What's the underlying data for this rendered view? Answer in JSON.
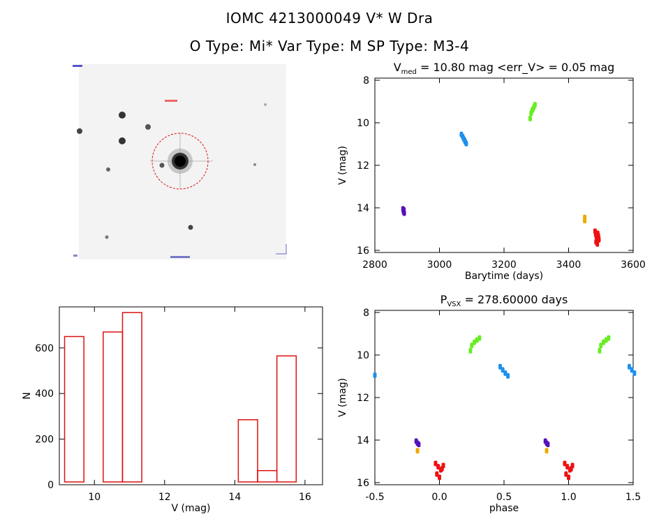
{
  "header": {
    "line1": "IOMC 4213000049    V* W Dra",
    "line2": "O Type: Mi*  Var Type: M   SP Type: M3-4"
  },
  "colors": {
    "histogram": "#dd1111",
    "finder_circle": "#dd1111",
    "season1": "#5511bb",
    "season2": "#1e90ee",
    "season3": "#66ee22",
    "season4": "#eeaa00",
    "season5": "#ee1111"
  },
  "chart_data": [
    {
      "id": "finder",
      "type": "image",
      "circle": "dashed red circle around target star"
    },
    {
      "id": "lightcurve",
      "type": "scatter",
      "title_main": "V",
      "title_sub": "med",
      "title_rest": " = 10.80 mag <err_V> = 0.05 mag",
      "xlabel": "Barytime (days)",
      "ylabel": "V (mag)",
      "xlim": [
        2800,
        3600
      ],
      "ylim": [
        16.1,
        7.9
      ],
      "xticks": [
        2800,
        3000,
        3200,
        3400,
        3600
      ],
      "yticks": [
        8,
        10,
        12,
        14,
        16
      ],
      "series": [
        {
          "color": "#5511bb",
          "x": [
            2887,
            2888,
            2889,
            2890,
            2891
          ],
          "y": [
            14.05,
            14.12,
            14.2,
            14.1,
            14.25
          ]
        },
        {
          "color": "#1e90ee",
          "x": [
            3068,
            3072,
            3075,
            3078,
            3080,
            3083
          ],
          "y": [
            10.55,
            10.65,
            10.75,
            10.82,
            10.9,
            10.98
          ]
        },
        {
          "color": "#66ee22",
          "x": [
            3284,
            3287,
            3290,
            3293,
            3296,
            3281
          ],
          "y": [
            9.55,
            9.42,
            9.35,
            9.25,
            9.15,
            9.8
          ]
        },
        {
          "color": "#eeaa00",
          "x": [
            3450,
            3450
          ],
          "y": [
            14.45,
            14.6
          ]
        },
        {
          "color": "#ee1111",
          "x": [
            3482,
            3484,
            3486,
            3488,
            3490,
            3492,
            3494,
            3485,
            3489,
            3493
          ],
          "y": [
            15.1,
            15.25,
            15.35,
            15.45,
            15.2,
            15.3,
            15.5,
            15.6,
            15.7,
            15.4
          ]
        }
      ]
    },
    {
      "id": "histogram",
      "type": "bar",
      "xlabel": "V (mag)",
      "ylabel": "N",
      "xlim": [
        9.0,
        16.5
      ],
      "ylim": [
        0,
        780
      ],
      "xticks": [
        10,
        12,
        14,
        16
      ],
      "yticks": [
        0,
        200,
        400,
        600
      ],
      "bin_width": 0.55,
      "bin_edges_start": [
        9.15,
        9.7,
        10.25,
        10.8,
        11.35,
        11.9,
        12.45,
        13.0,
        13.55,
        14.1,
        14.65,
        15.2,
        15.75
      ],
      "values": [
        650,
        8,
        670,
        755,
        0,
        0,
        0,
        0,
        0,
        285,
        62,
        565,
        8
      ]
    },
    {
      "id": "phased",
      "type": "scatter",
      "title_main": "P",
      "title_sub": "VSX",
      "title_rest": " = 278.60000 days",
      "xlabel": "phase",
      "ylabel": "V (mag)",
      "xlim": [
        -0.5,
        1.5
      ],
      "ylim": [
        16.1,
        7.9
      ],
      "xticks": [
        -0.5,
        0.0,
        0.5,
        1.0,
        1.5
      ],
      "xtick_labels": [
        "-0.5",
        "0.0",
        "0.5",
        "1.0",
        "1.5"
      ],
      "yticks": [
        8,
        10,
        12,
        14,
        16
      ],
      "series": [
        {
          "color": "#5511bb",
          "x": [
            -0.18,
            -0.17,
            -0.16,
            0.82,
            0.83,
            0.84
          ],
          "y": [
            14.05,
            14.15,
            14.2,
            14.05,
            14.15,
            14.2
          ]
        },
        {
          "color": "#1e90ee",
          "x": [
            0.47,
            0.49,
            0.51,
            0.53,
            -0.5,
            1.47,
            1.49,
            1.51
          ],
          "y": [
            10.55,
            10.7,
            10.85,
            10.98,
            10.95,
            10.55,
            10.7,
            10.85
          ]
        },
        {
          "color": "#66ee22",
          "x": [
            0.25,
            0.27,
            0.29,
            0.31,
            0.24,
            1.25,
            1.27,
            1.29,
            1.31,
            1.24
          ],
          "y": [
            9.55,
            9.4,
            9.3,
            9.2,
            9.8,
            9.55,
            9.4,
            9.3,
            9.2,
            9.8
          ]
        },
        {
          "color": "#eeaa00",
          "x": [
            -0.17,
            0.83
          ],
          "y": [
            14.5,
            14.5
          ]
        },
        {
          "color": "#ee1111",
          "x": [
            -0.03,
            -0.01,
            0.01,
            0.03,
            -0.02,
            0.0,
            0.02,
            0.97,
            0.99,
            1.01,
            1.03,
            0.98,
            1.0,
            1.02
          ],
          "y": [
            15.1,
            15.25,
            15.4,
            15.2,
            15.6,
            15.75,
            15.35,
            15.1,
            15.25,
            15.4,
            15.2,
            15.6,
            15.75,
            15.35
          ]
        }
      ]
    }
  ]
}
